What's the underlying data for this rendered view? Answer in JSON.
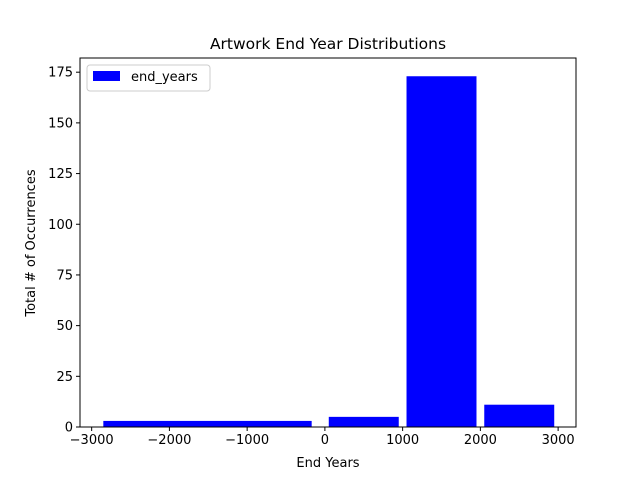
{
  "chart_data": {
    "type": "bar",
    "title": "Artwork End Year Distributions",
    "xlabel": "End Years",
    "ylabel": "Total # of Occurrences",
    "xlim": [
      -3150,
      3230
    ],
    "ylim": [
      0,
      182
    ],
    "xticks": [
      -3000,
      -2000,
      -1000,
      0,
      1000,
      2000,
      3000
    ],
    "xtick_labels": [
      "−3000",
      "−2000",
      "−1000",
      "0",
      "1000",
      "2000",
      "3000"
    ],
    "yticks": [
      0,
      25,
      50,
      75,
      100,
      125,
      150,
      175
    ],
    "ytick_labels": [
      "0",
      "25",
      "50",
      "75",
      "100",
      "125",
      "150",
      "175"
    ],
    "grid": false,
    "legend_position": "upper-left",
    "bar_color": "#0000ff",
    "series": [
      {
        "name": "end_years",
        "bars": [
          {
            "x0": -2850,
            "x1": -170,
            "value": 3
          },
          {
            "x0": 50,
            "x1": 950,
            "value": 5
          },
          {
            "x0": 1050,
            "x1": 1950,
            "value": 173
          },
          {
            "x0": 2050,
            "x1": 2950,
            "value": 11
          }
        ]
      }
    ]
  }
}
